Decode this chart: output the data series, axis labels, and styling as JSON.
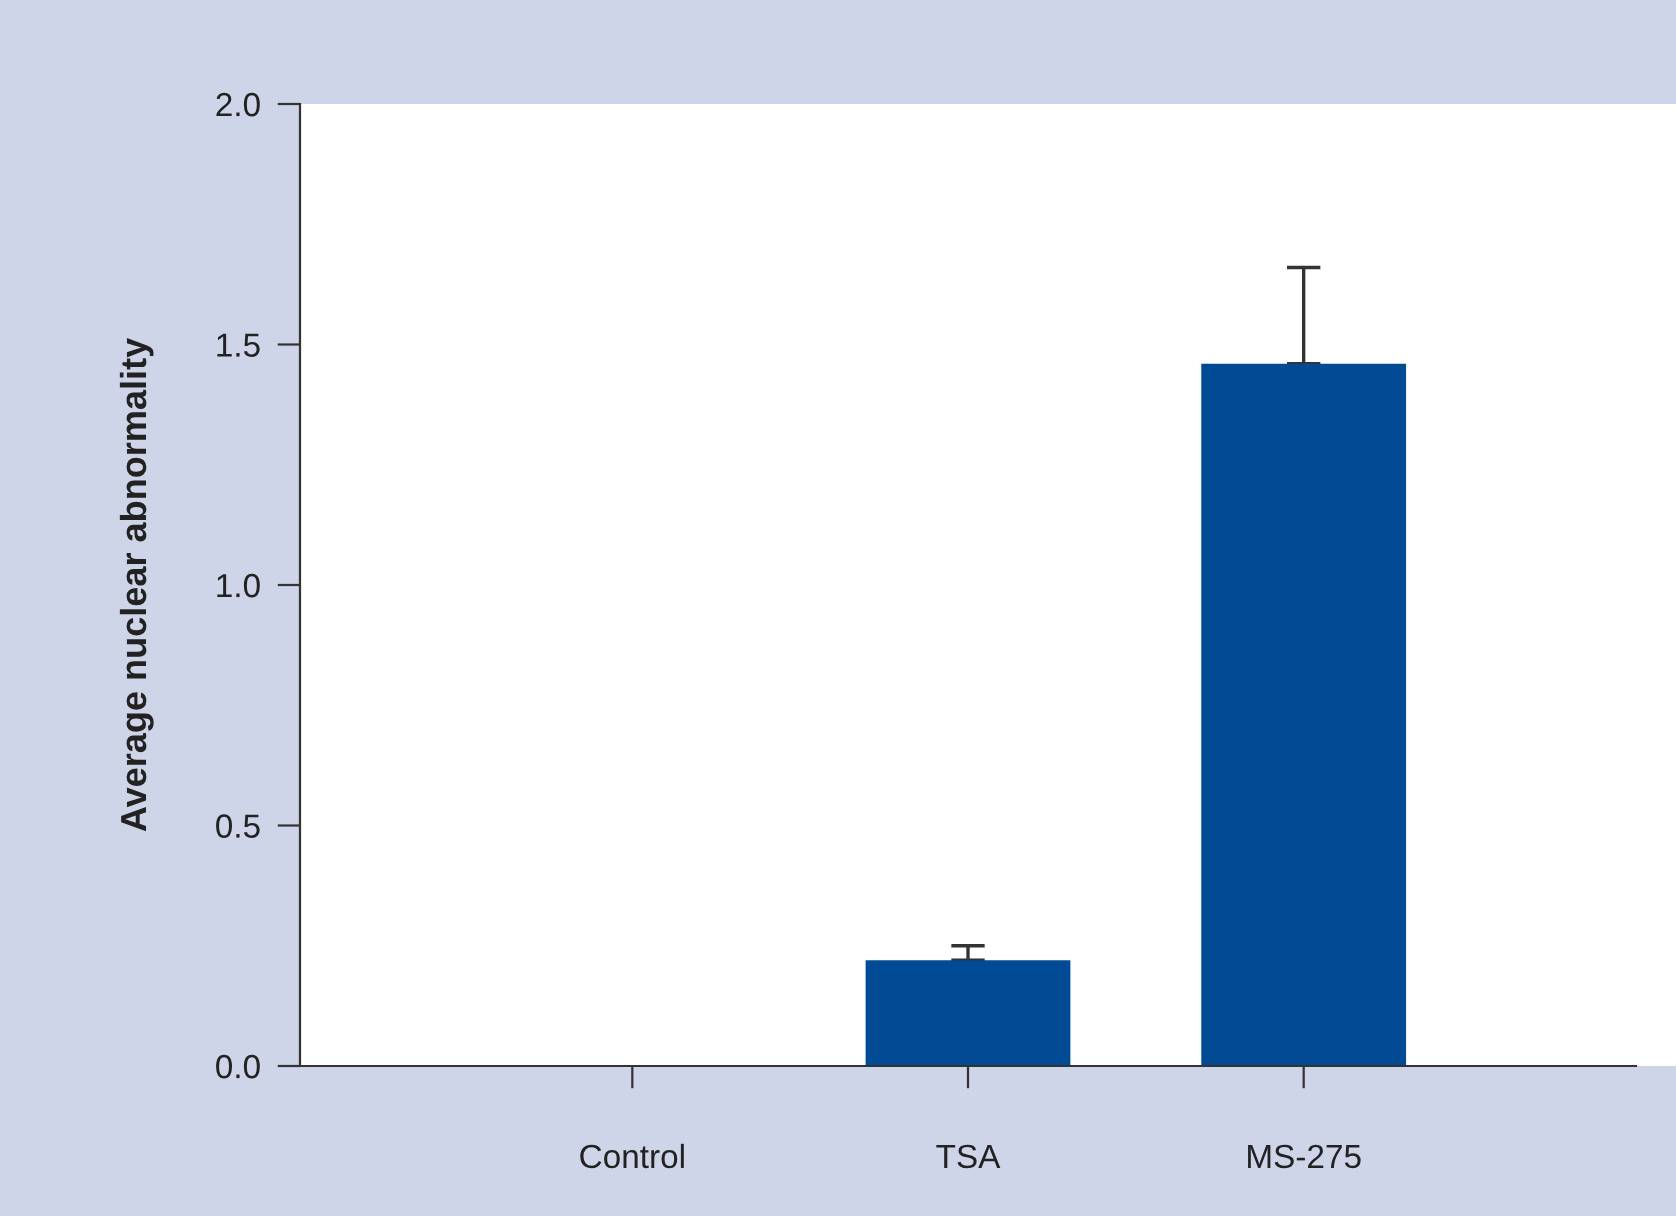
{
  "chart_data": {
    "type": "bar",
    "ylabel": "Average nuclear abnormality",
    "categories": [
      "Control",
      "TSA",
      "MS-275"
    ],
    "values": [
      0,
      0.22,
      1.46
    ],
    "errors": [
      null,
      [
        0.22,
        0.25
      ],
      [
        1.46,
        1.66
      ]
    ],
    "color": "#004b93",
    "ylim": [
      0,
      2.0
    ],
    "yticks": [
      {
        "value": 0,
        "label": "0.0"
      },
      {
        "value": 0.5,
        "label": "0.5"
      },
      {
        "value": 1.0,
        "label": "1.0"
      },
      {
        "value": 1.5,
        "label": "1.5"
      },
      {
        "value": 2.0,
        "label": "2.0"
      }
    ],
    "grid": false
  }
}
